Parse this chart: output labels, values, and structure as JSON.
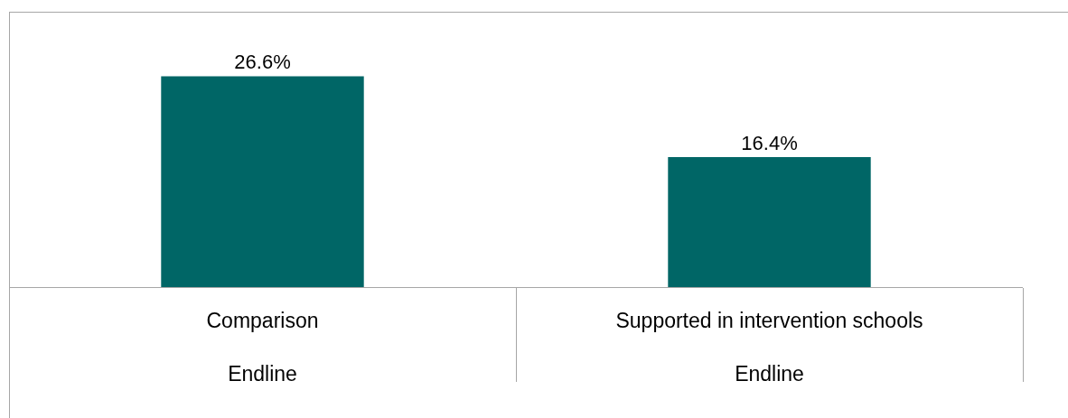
{
  "chart_data": {
    "type": "bar",
    "categories": [
      "Comparison\nEndline",
      "Supported in intervention schools\nEndline"
    ],
    "values": [
      26.6,
      16.4
    ],
    "color": "#006666",
    "value_labels": [
      "26.6%",
      "16.4%"
    ],
    "tick_labels": "x"
  }
}
